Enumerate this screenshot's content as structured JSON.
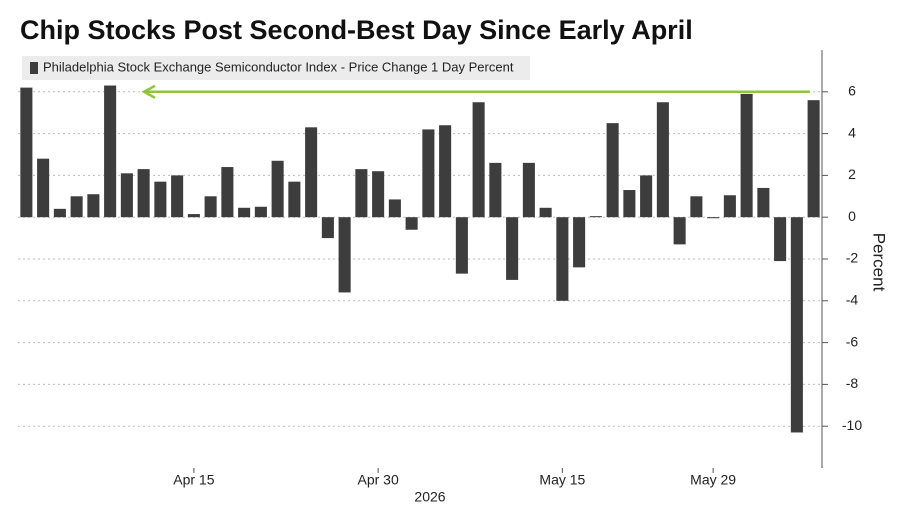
{
  "chart_data": {
    "type": "bar",
    "title": "Chip Stocks Post Second-Best Day Since Early April",
    "legend": "Philadelphia Stock Exchange Semiconductor Index - Price Change 1 Day Percent",
    "y_label": "Percent",
    "x_label": "2026",
    "color": "#3d3d3d",
    "categories": [
      null,
      null,
      null,
      null,
      null,
      null,
      null,
      null,
      null,
      null,
      "Apr 15",
      null,
      null,
      null,
      null,
      null,
      null,
      null,
      null,
      null,
      null,
      "Apr 30",
      null,
      null,
      null,
      null,
      null,
      null,
      null,
      null,
      null,
      null,
      "May 15",
      null,
      null,
      null,
      null,
      null,
      null,
      null,
      null,
      "May 29",
      null,
      null,
      null,
      null,
      null,
      null
    ],
    "values": [
      6.2,
      2.8,
      0.4,
      1.0,
      1.1,
      6.3,
      2.1,
      2.3,
      1.7,
      2.0,
      0.15,
      1.0,
      2.4,
      0.45,
      0.5,
      2.7,
      1.7,
      4.3,
      -1.0,
      -3.6,
      2.3,
      2.2,
      0.85,
      -0.6,
      4.2,
      4.4,
      -2.7,
      5.5,
      2.6,
      -3.0,
      2.6,
      0.45,
      -4.0,
      -2.4,
      0.05,
      4.5,
      1.3,
      2.0,
      5.5,
      -1.3,
      1.0,
      -0.05,
      1.05,
      5.9,
      1.4,
      -2.1,
      -10.3,
      5.6
    ],
    "ylim": [
      -12,
      8
    ],
    "yticks": [
      -10,
      -8,
      -6,
      -4,
      -2,
      0,
      2,
      4,
      6
    ],
    "grid": true
  }
}
